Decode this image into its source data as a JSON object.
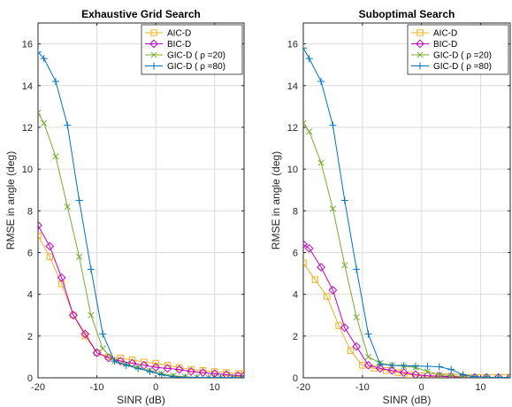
{
  "chart_data": [
    {
      "type": "line",
      "title": "Exhaustive Grid Search",
      "xlabel": "SINR (dB)",
      "ylabel": "RMSE in angle (deg)",
      "xlim": [
        -20,
        15
      ],
      "ylim": [
        0,
        17
      ],
      "xticks": [
        -20,
        -10,
        0,
        10
      ],
      "yticks": [
        0,
        2,
        4,
        6,
        8,
        10,
        12,
        14,
        16
      ],
      "grid": true,
      "legend_position": "top-right",
      "series": [
        {
          "name": "AIC-D",
          "color": "#EDB120",
          "marker": "square",
          "x": [
            -20,
            -18,
            -16,
            -14,
            -12,
            -10,
            -8,
            -6,
            -4,
            -2,
            0,
            2,
            4,
            6,
            8,
            10,
            12,
            14,
            15
          ],
          "y": [
            6.8,
            5.8,
            4.5,
            3.0,
            2.0,
            1.2,
            1.0,
            0.95,
            0.85,
            0.75,
            0.7,
            0.6,
            0.5,
            0.4,
            0.35,
            0.3,
            0.25,
            0.2,
            0.2
          ]
        },
        {
          "name": "BIC-D",
          "color": "#BF00BF",
          "marker": "diamond",
          "x": [
            -20,
            -18,
            -16,
            -14,
            -12,
            -10,
            -8,
            -6,
            -4,
            -2,
            0,
            2,
            4,
            6,
            8,
            10,
            12,
            14,
            15
          ],
          "y": [
            7.3,
            6.3,
            4.8,
            3.0,
            2.1,
            1.2,
            0.95,
            0.8,
            0.7,
            0.6,
            0.5,
            0.45,
            0.4,
            0.3,
            0.25,
            0.2,
            0.15,
            0.1,
            0.1
          ]
        },
        {
          "name": "GIC-D ( ρ =20)",
          "color": "#77AC30",
          "marker": "x",
          "x": [
            -20,
            -19,
            -17,
            -15,
            -13,
            -11,
            -9,
            -7,
            -5,
            -3,
            -1,
            1,
            3,
            5,
            7,
            9,
            11,
            13,
            15
          ],
          "y": [
            12.7,
            12.2,
            10.6,
            8.2,
            5.8,
            3.0,
            1.4,
            0.8,
            0.65,
            0.5,
            0.35,
            0.2,
            0.1,
            0.05,
            0.02,
            0.01,
            0.01,
            0.01,
            0.01
          ]
        },
        {
          "name": "GIC-D ( ρ =80)",
          "color": "#0072BD",
          "marker": "plus",
          "x": [
            -20,
            -19,
            -17,
            -15,
            -13,
            -11,
            -9,
            -7,
            -5,
            -3,
            -1,
            1,
            3,
            5,
            7,
            9,
            11,
            13,
            15
          ],
          "y": [
            15.6,
            15.3,
            14.2,
            12.1,
            8.5,
            5.2,
            2.1,
            0.8,
            0.6,
            0.45,
            0.3,
            0.15,
            0.05,
            0.02,
            0.01,
            0.01,
            0.01,
            0.01,
            0.01
          ]
        }
      ]
    },
    {
      "type": "line",
      "title": "Suboptimal Search",
      "xlabel": "SINR (dB)",
      "ylabel": "RMSE in angle (deg)",
      "xlim": [
        -20,
        15
      ],
      "ylim": [
        0,
        17
      ],
      "xticks": [
        -20,
        -10,
        0,
        10
      ],
      "yticks": [
        0,
        2,
        4,
        6,
        8,
        10,
        12,
        14,
        16
      ],
      "grid": true,
      "legend_position": "top-right",
      "series": [
        {
          "name": "AIC-D",
          "color": "#EDB120",
          "marker": "square",
          "x": [
            -20,
            -18,
            -16,
            -14,
            -12,
            -10,
            -8,
            -6,
            -4,
            -2,
            0,
            2,
            4,
            6,
            8,
            10,
            12,
            14,
            15
          ],
          "y": [
            5.5,
            4.7,
            3.9,
            2.5,
            1.3,
            0.6,
            0.45,
            0.35,
            0.25,
            0.15,
            0.1,
            0.05,
            0.05,
            0.03,
            0.02,
            0.02,
            0.02,
            0.02,
            0.02
          ]
        },
        {
          "name": "BIC-D",
          "color": "#BF00BF",
          "marker": "diamond",
          "x": [
            -20,
            -19,
            -17,
            -15,
            -13,
            -11,
            -9,
            -7,
            -5,
            -3,
            -1,
            1,
            3,
            5,
            7,
            9,
            11,
            13,
            15
          ],
          "y": [
            6.4,
            6.2,
            5.3,
            4.2,
            2.4,
            1.5,
            0.6,
            0.45,
            0.35,
            0.25,
            0.15,
            0.1,
            0.08,
            0.05,
            0.03,
            0.02,
            0.02,
            0.02,
            0.02
          ]
        },
        {
          "name": "GIC-D ( ρ =20)",
          "color": "#77AC30",
          "marker": "x",
          "x": [
            -20,
            -19,
            -17,
            -15,
            -13,
            -11,
            -9,
            -7,
            -5,
            -3,
            -1,
            1,
            3,
            5,
            7,
            9,
            11,
            13,
            15
          ],
          "y": [
            12.2,
            11.8,
            10.3,
            8.1,
            5.4,
            2.9,
            1.0,
            0.7,
            0.6,
            0.55,
            0.5,
            0.3,
            0.15,
            0.1,
            0.05,
            0.03,
            0.02,
            0.02,
            0.02
          ]
        },
        {
          "name": "GIC-D ( ρ =80)",
          "color": "#0072BD",
          "marker": "plus",
          "x": [
            -20,
            -19,
            -17,
            -15,
            -13,
            -11,
            -9,
            -7,
            -5,
            -3,
            -1,
            1,
            3,
            5,
            7,
            9,
            11,
            13,
            15
          ],
          "y": [
            15.8,
            15.3,
            14.2,
            12.1,
            8.5,
            5.2,
            2.1,
            0.65,
            0.6,
            0.58,
            0.56,
            0.55,
            0.53,
            0.4,
            0.15,
            0.05,
            0.03,
            0.02,
            0.02
          ]
        }
      ]
    }
  ]
}
